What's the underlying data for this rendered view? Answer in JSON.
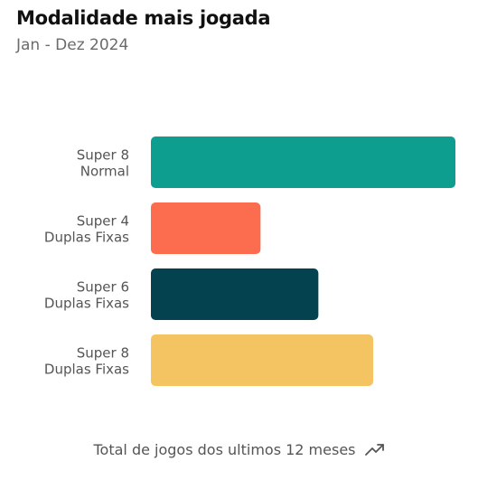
{
  "header": {
    "title": "Modalidade mais jogada",
    "subtitle": "Jan - Dez 2024"
  },
  "footer": {
    "caption": "Total de jogos dos ultimos 12 meses",
    "icon": "trending-up-icon"
  },
  "chart_data": {
    "type": "bar",
    "orientation": "horizontal",
    "title": "Modalidade mais jogada",
    "subtitle": "Jan - Dez 2024",
    "categories": [
      [
        "Super 8",
        "Normal"
      ],
      [
        "Super 4",
        "Duplas Fixas"
      ],
      [
        "Super 6",
        "Duplas Fixas"
      ],
      [
        "Super 8",
        "Duplas Fixas"
      ]
    ],
    "values": [
      100,
      36,
      55,
      73
    ],
    "xlim": [
      0,
      100
    ],
    "colors": [
      "#0d9e8f",
      "#fc6c4e",
      "#054250",
      "#f4c462"
    ],
    "grid": false,
    "legend": "none"
  }
}
